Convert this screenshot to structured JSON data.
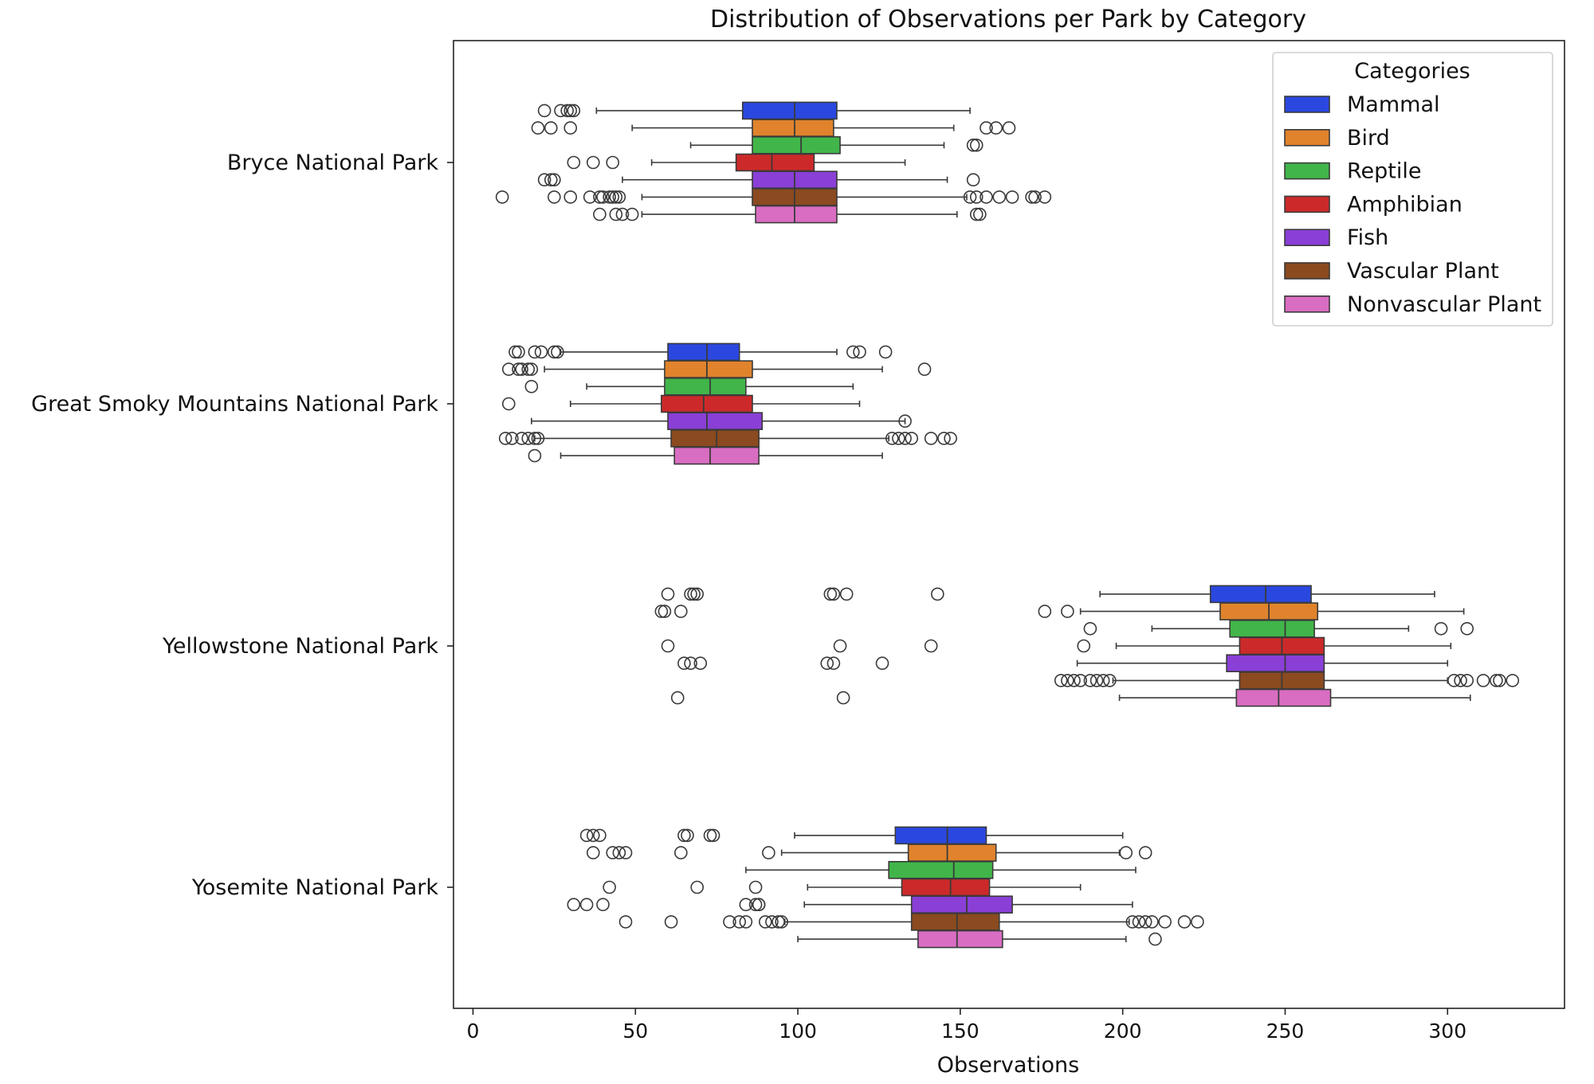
{
  "chart_data": {
    "type": "boxplot",
    "orientation": "horizontal",
    "title": "Distribution of Observations per Park by Category",
    "xlabel": "Observations",
    "ylabel": "",
    "xlim": [
      -6,
      336
    ],
    "xticks": [
      0,
      50,
      100,
      150,
      200,
      250,
      300
    ],
    "grid": false,
    "legend": {
      "title": "Categories",
      "position": "top-right"
    },
    "categories": [
      "Bryce National Park",
      "Great Smoky Mountains National Park",
      "Yellowstone National Park",
      "Yosemite National Park"
    ],
    "series": [
      {
        "name": "Mammal",
        "color": "#2a48e0",
        "boxes": [
          {
            "whisker_low": 38,
            "q1": 83,
            "median": 99,
            "q3": 112,
            "whisker_high": 153,
            "outliers": [
              22,
              27,
              29,
              30,
              31
            ]
          },
          {
            "whisker_low": 27,
            "q1": 60,
            "median": 72,
            "q3": 82,
            "whisker_high": 112,
            "outliers": [
              13,
              14,
              19,
              21,
              25,
              26,
              117,
              119,
              127
            ]
          },
          {
            "whisker_low": 193,
            "q1": 227,
            "median": 244,
            "q3": 258,
            "whisker_high": 296,
            "outliers": [
              60,
              67,
              68,
              69,
              110,
              111,
              115,
              143
            ]
          },
          {
            "whisker_low": 99,
            "q1": 130,
            "median": 146,
            "q3": 158,
            "whisker_high": 200,
            "outliers": [
              35,
              37,
              39,
              65,
              66,
              73,
              74
            ]
          }
        ]
      },
      {
        "name": "Bird",
        "color": "#e0832c",
        "boxes": [
          {
            "whisker_low": 49,
            "q1": 86,
            "median": 99,
            "q3": 111,
            "whisker_high": 148,
            "outliers": [
              20,
              24,
              30,
              158,
              161,
              165
            ]
          },
          {
            "whisker_low": 22,
            "q1": 59,
            "median": 72,
            "q3": 86,
            "whisker_high": 126,
            "outliers": [
              11,
              14,
              15,
              17,
              18,
              139
            ]
          },
          {
            "whisker_low": 187,
            "q1": 230,
            "median": 245,
            "q3": 260,
            "whisker_high": 305,
            "outliers": [
              58,
              59,
              64,
              176,
              183
            ]
          },
          {
            "whisker_low": 95,
            "q1": 134,
            "median": 146,
            "q3": 161,
            "whisker_high": 199,
            "outliers": [
              37,
              43,
              45,
              47,
              64,
              91,
              201,
              207
            ]
          }
        ]
      },
      {
        "name": "Reptile",
        "color": "#41b54a",
        "boxes": [
          {
            "whisker_low": 67,
            "q1": 86,
            "median": 101,
            "q3": 113,
            "whisker_high": 145,
            "outliers": [
              154,
              155
            ]
          },
          {
            "whisker_low": 35,
            "q1": 59,
            "median": 73,
            "q3": 84,
            "whisker_high": 117,
            "outliers": [
              18
            ]
          },
          {
            "whisker_low": 209,
            "q1": 233,
            "median": 250,
            "q3": 259,
            "whisker_high": 288,
            "outliers": [
              190,
              298,
              306
            ]
          },
          {
            "whisker_low": 84,
            "q1": 128,
            "median": 148,
            "q3": 160,
            "whisker_high": 204,
            "outliers": []
          }
        ]
      },
      {
        "name": "Amphibian",
        "color": "#cc2a2a",
        "boxes": [
          {
            "whisker_low": 55,
            "q1": 81,
            "median": 92,
            "q3": 105,
            "whisker_high": 133,
            "outliers": [
              31,
              37,
              43
            ]
          },
          {
            "whisker_low": 30,
            "q1": 58,
            "median": 71,
            "q3": 86,
            "whisker_high": 119,
            "outliers": [
              11
            ]
          },
          {
            "whisker_low": 198,
            "q1": 236,
            "median": 249,
            "q3": 262,
            "whisker_high": 301,
            "outliers": [
              60,
              113,
              141,
              188
            ]
          },
          {
            "whisker_low": 103,
            "q1": 132,
            "median": 147,
            "q3": 159,
            "whisker_high": 187,
            "outliers": [
              42,
              69,
              87
            ]
          }
        ]
      },
      {
        "name": "Fish",
        "color": "#8a3fd6",
        "boxes": [
          {
            "whisker_low": 46,
            "q1": 86,
            "median": 99,
            "q3": 112,
            "whisker_high": 146,
            "outliers": [
              22,
              24,
              25,
              154
            ]
          },
          {
            "whisker_low": 18,
            "q1": 60,
            "median": 72,
            "q3": 89,
            "whisker_high": 133,
            "outliers": [
              133
            ]
          },
          {
            "whisker_low": 186,
            "q1": 232,
            "median": 250,
            "q3": 262,
            "whisker_high": 300,
            "outliers": [
              65,
              67,
              70,
              109,
              111,
              126
            ]
          },
          {
            "whisker_low": 102,
            "q1": 135,
            "median": 152,
            "q3": 166,
            "whisker_high": 203,
            "outliers": [
              31,
              35,
              40,
              84,
              87,
              88,
              88
            ]
          }
        ]
      },
      {
        "name": "Vascular Plant",
        "color": "#8b4a1f",
        "boxes": [
          {
            "whisker_low": 52,
            "q1": 86,
            "median": 99,
            "q3": 112,
            "whisker_high": 152,
            "outliers": [
              9,
              25,
              30,
              36,
              39,
              40,
              42,
              43,
              44,
              45,
              153,
              155,
              158,
              162,
              166,
              172,
              173,
              176
            ]
          },
          {
            "whisker_low": 19,
            "q1": 61,
            "median": 75,
            "q3": 88,
            "whisker_high": 128,
            "outliers": [
              10,
              12,
              15,
              17,
              19,
              20,
              129,
              131,
              133,
              135,
              141,
              145,
              147
            ]
          },
          {
            "whisker_low": 197,
            "q1": 236,
            "median": 249,
            "q3": 262,
            "whisker_high": 300,
            "outliers": [
              181,
              183,
              185,
              187,
              190,
              192,
              194,
              196,
              302,
              304,
              306,
              311,
              315,
              316,
              320
            ]
          },
          {
            "whisker_low": 96,
            "q1": 135,
            "median": 149,
            "q3": 162,
            "whisker_high": 202,
            "outliers": [
              47,
              61,
              79,
              82,
              84,
              90,
              92,
              94,
              95,
              203,
              205,
              207,
              209,
              213,
              219,
              223
            ]
          }
        ]
      },
      {
        "name": "Nonvascular Plant",
        "color": "#d96dc2",
        "boxes": [
          {
            "whisker_low": 52,
            "q1": 87,
            "median": 99,
            "q3": 112,
            "whisker_high": 149,
            "outliers": [
              39,
              44,
              46,
              49,
              155,
              156
            ]
          },
          {
            "whisker_low": 27,
            "q1": 62,
            "median": 73,
            "q3": 88,
            "whisker_high": 126,
            "outliers": [
              19
            ]
          },
          {
            "whisker_low": 199,
            "q1": 235,
            "median": 248,
            "q3": 264,
            "whisker_high": 307,
            "outliers": [
              63,
              114
            ]
          },
          {
            "whisker_low": 100,
            "q1": 137,
            "median": 149,
            "q3": 163,
            "whisker_high": 201,
            "outliers": [
              210
            ]
          }
        ]
      }
    ]
  }
}
